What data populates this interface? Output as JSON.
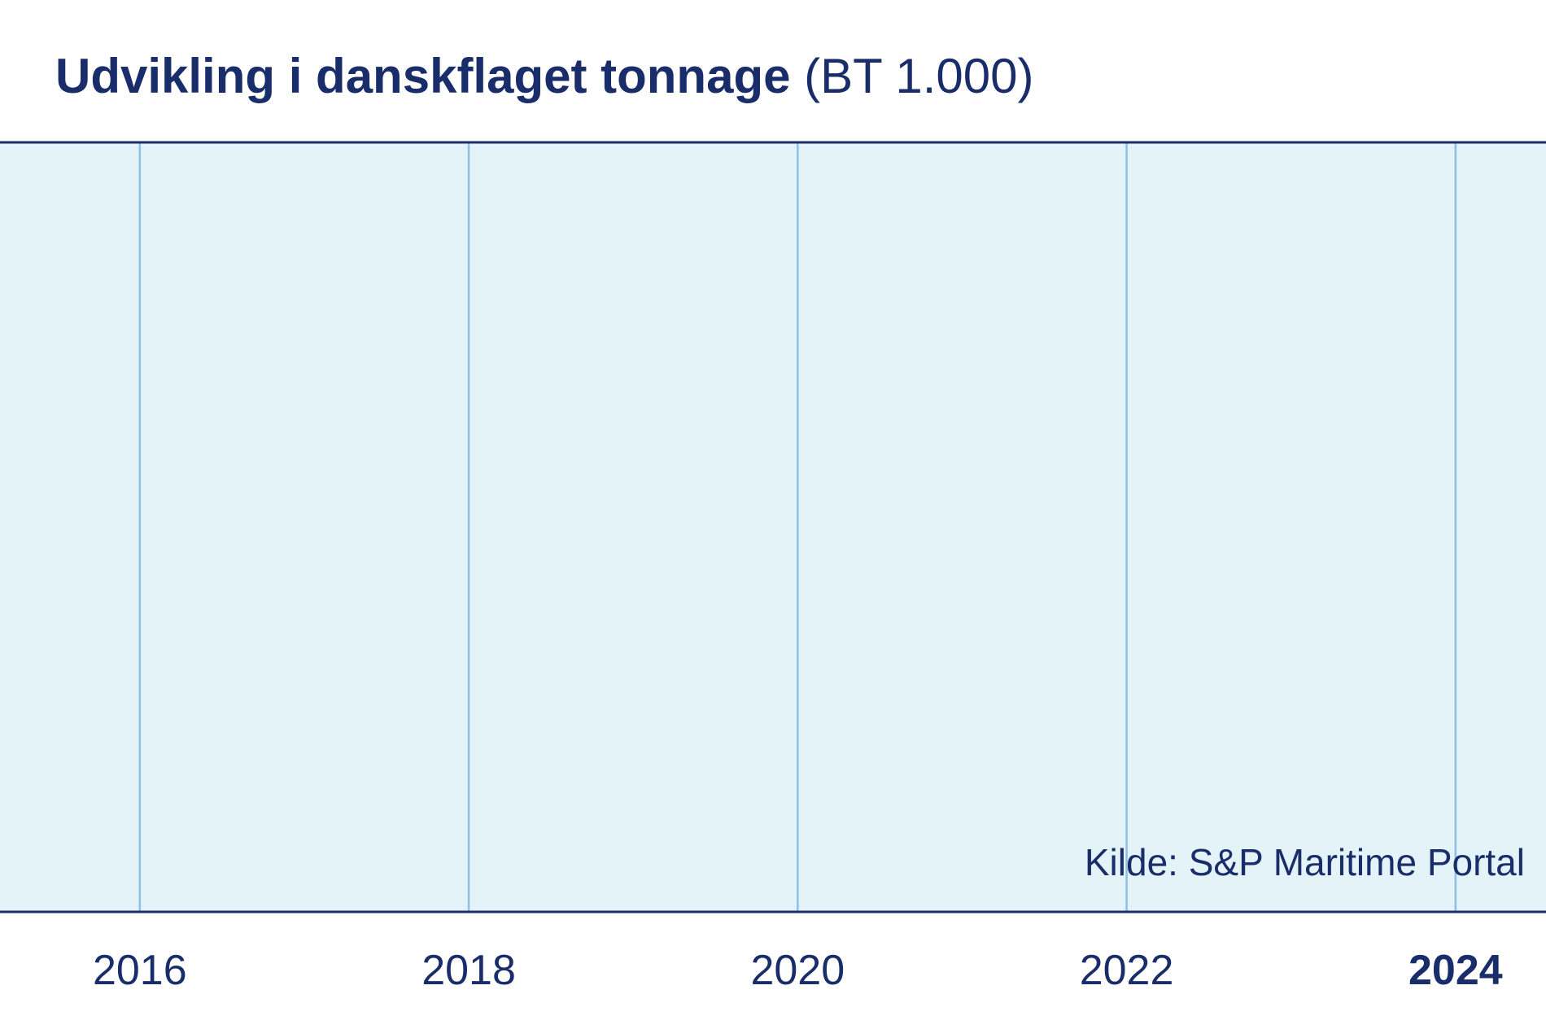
{
  "chart_data": {
    "type": "line",
    "title": "Udvikling i danskflaget tonnage",
    "title_unit": "(BT 1.000)",
    "xlabel": "",
    "ylabel": "",
    "x_ticks": [
      2016,
      2018,
      2020,
      2022,
      2024
    ],
    "x_tick_labels": [
      "2016",
      "2018",
      "2020",
      "2022",
      "2024"
    ],
    "highlighted_tick": "2024",
    "xlim": [
      2015.15,
      2024.55
    ],
    "series": [],
    "grid": "vertical",
    "source": "Kilde: S&P Maritime Portal",
    "colors": {
      "background": "#e3f3f7",
      "gridline": "#8ec0e6",
      "axis": "#1a2d6b",
      "text": "#1a2d6b"
    }
  }
}
